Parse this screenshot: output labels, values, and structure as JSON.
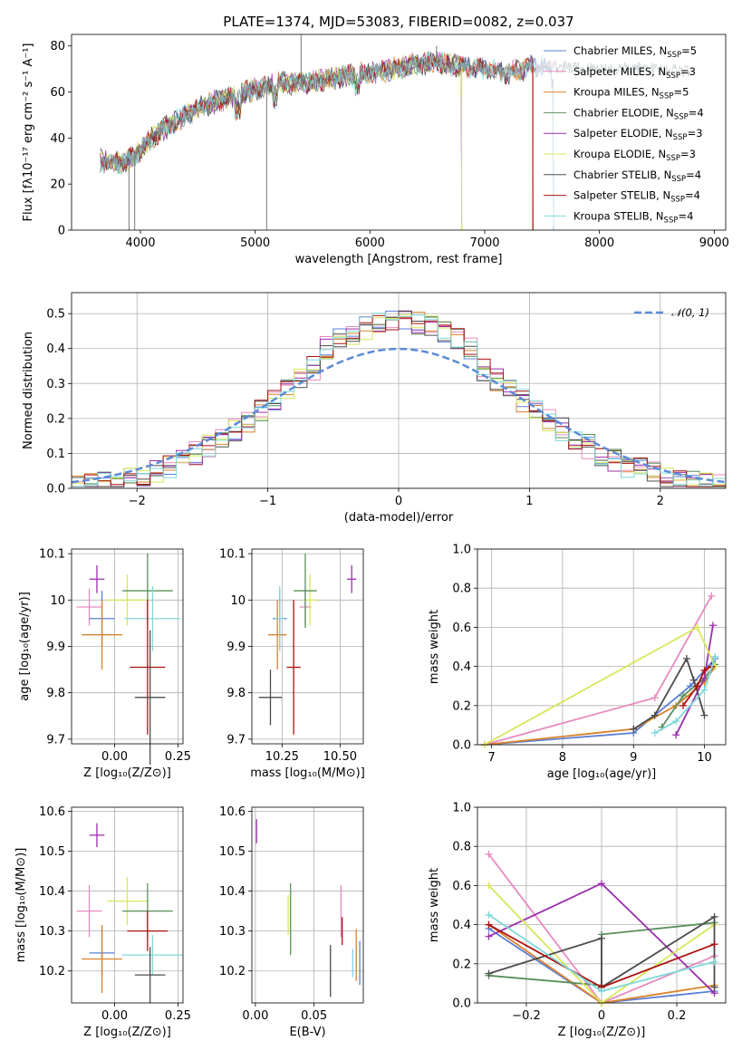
{
  "figure": {
    "title": "PLATE=1374, MJD=53083, FIBERID=0082, z=0.037"
  },
  "colors": {
    "Chabrier MILES": "#5b7fd6",
    "Salpeter MILES": "#e88ac0",
    "Kroupa MILES": "#d9822b",
    "Chabrier ELODIE": "#5a8f5a",
    "Salpeter ELODIE": "#9b2fae",
    "Kroupa ELODIE": "#d8e65a",
    "Chabrier STELIB": "#4d4d4d",
    "Salpeter STELIB": "#aa1111",
    "Kroupa STELIB": "#7fd8d8",
    "normal": "#5b8bd6"
  },
  "chart_data": [
    {
      "id": "spectrum",
      "type": "line",
      "xlabel": "wavelength [Angstrom, rest frame]",
      "ylabel": "Flux [fλ10⁻¹⁷ erg cm⁻² s⁻¹ A⁻¹]",
      "xlim": [
        3400,
        9100
      ],
      "ylim": [
        0,
        85
      ],
      "xticks": [
        4000,
        5000,
        6000,
        7000,
        8000,
        9000
      ],
      "yticks": [
        0,
        20,
        40,
        60,
        80
      ],
      "legend_position": "top-right",
      "legend": [
        {
          "name": "Chabrier MILES, N",
          "sub": "SSP",
          "eq": "=5",
          "key": "Chabrier MILES"
        },
        {
          "name": "Salpeter MILES, N",
          "sub": "SSP",
          "eq": "=3",
          "key": "Salpeter MILES"
        },
        {
          "name": "Kroupa MILES, N",
          "sub": "SSP",
          "eq": "=5",
          "key": "Kroupa MILES"
        },
        {
          "name": "Chabrier ELODIE, N",
          "sub": "SSP",
          "eq": "=4",
          "key": "Chabrier ELODIE"
        },
        {
          "name": "Salpeter ELODIE, N",
          "sub": "SSP",
          "eq": "=3",
          "key": "Salpeter ELODIE"
        },
        {
          "name": "Kroupa ELODIE, N",
          "sub": "SSP",
          "eq": "=3",
          "key": "Kroupa ELODIE"
        },
        {
          "name": "Chabrier STELIB, N",
          "sub": "SSP",
          "eq": "=4",
          "key": "Chabrier STELIB"
        },
        {
          "name": "Salpeter STELIB, N",
          "sub": "SSP",
          "eq": "=4",
          "key": "Salpeter STELIB"
        },
        {
          "name": "Kroupa STELIB, N",
          "sub": "SSP",
          "eq": "=4",
          "key": "Kroupa STELIB"
        }
      ],
      "continuum": [
        [
          3650,
          30
        ],
        [
          3800,
          29
        ],
        [
          3950,
          32
        ],
        [
          4050,
          38
        ],
        [
          4200,
          44
        ],
        [
          4400,
          50
        ],
        [
          4600,
          55
        ],
        [
          4800,
          58
        ],
        [
          5000,
          61
        ],
        [
          5200,
          64
        ],
        [
          5400,
          64
        ],
        [
          5600,
          65
        ],
        [
          5800,
          67
        ],
        [
          6000,
          68
        ],
        [
          6200,
          70
        ],
        [
          6400,
          72
        ],
        [
          6560,
          73
        ],
        [
          6800,
          71
        ],
        [
          7000,
          70
        ],
        [
          7200,
          68
        ],
        [
          7400,
          71
        ],
        [
          7600,
          71
        ],
        [
          8000,
          70
        ],
        [
          8500,
          70
        ],
        [
          8800,
          69
        ]
      ],
      "line_start": 3650,
      "line_end": 8800,
      "spikes": [
        [
          3900,
          0
        ],
        [
          3950,
          0
        ],
        [
          5100,
          0
        ],
        [
          5400,
          85
        ],
        [
          6580,
          80
        ],
        [
          6800,
          0
        ],
        [
          7420,
          0
        ]
      ],
      "series_ranges": {
        "Chabrier MILES": [
          3650,
          7600
        ],
        "Salpeter MILES": [
          3650,
          7600
        ],
        "Kroupa MILES": [
          3650,
          7420
        ],
        "Chabrier ELODIE": [
          3650,
          6800
        ],
        "Salpeter ELODIE": [
          3650,
          6800
        ],
        "Kroupa ELODIE": [
          3650,
          6800
        ],
        "Chabrier STELIB": [
          3650,
          7420
        ],
        "Salpeter STELIB": [
          3650,
          7420
        ],
        "Kroupa STELIB": [
          3650,
          7600
        ]
      }
    },
    {
      "id": "residual-hist",
      "type": "bar",
      "xlabel": "(data-model)/error",
      "ylabel": "Normed distribution",
      "xlim": [
        -2.5,
        2.5
      ],
      "ylim": [
        0,
        0.56
      ],
      "xticks": [
        -2,
        -1,
        0,
        1,
        2
      ],
      "yticks": [
        0.0,
        0.1,
        0.2,
        0.3,
        0.4,
        0.5
      ],
      "bin_width": 0.1,
      "grid": true,
      "legend": [
        {
          "name": "𝒩(0, 1)",
          "key": "normal"
        }
      ],
      "legend_position": "top-right"
    },
    {
      "id": "age-vs-Z",
      "type": "scatter",
      "xlabel": "Z [log₁₀(Z/Z⊙)]",
      "ylabel": "age  [log₁₀(age/yr)]",
      "xlim": [
        -0.17,
        0.27
      ],
      "ylim": [
        9.69,
        10.11
      ],
      "xticks": [
        0.0,
        0.25
      ],
      "yticks": [
        9.7,
        9.8,
        9.9,
        10.0,
        10.1
      ]
    },
    {
      "id": "age-vs-mass",
      "type": "scatter",
      "xlabel": "mass [log₁₀(M/M⊙)]",
      "ylabel": "",
      "xlim": [
        10.12,
        10.6
      ],
      "ylim": [
        9.69,
        10.11
      ],
      "xticks": [
        10.25,
        10.5
      ],
      "yticks": [
        9.7,
        9.8,
        9.9,
        10.0,
        10.1
      ]
    },
    {
      "id": "weight-vs-age",
      "type": "line",
      "xlabel": "age  [log₁₀(age/yr)]",
      "ylabel": "mass weight",
      "xlim": [
        6.8,
        10.3
      ],
      "ylim": [
        0,
        1.0
      ],
      "xticks": [
        7,
        8,
        9,
        10
      ],
      "yticks": [
        0.0,
        0.2,
        0.4,
        0.6,
        0.8,
        1.0
      ],
      "series": [
        {
          "key": "Chabrier MILES",
          "x": [
            6.9,
            9.0,
            9.8,
            10.15
          ],
          "y": [
            0.0,
            0.06,
            0.3,
            0.44
          ]
        },
        {
          "key": "Salpeter MILES",
          "x": [
            6.9,
            9.3,
            10.1
          ],
          "y": [
            0.0,
            0.24,
            0.76
          ]
        },
        {
          "key": "Kroupa MILES",
          "x": [
            6.9,
            9.0,
            9.6,
            10.0,
            10.15
          ],
          "y": [
            0.0,
            0.08,
            0.2,
            0.32,
            0.4
          ]
        },
        {
          "key": "Chabrier ELODIE",
          "x": [
            9.4,
            9.7,
            10.0,
            10.15
          ],
          "y": [
            0.09,
            0.25,
            0.34,
            0.41
          ]
        },
        {
          "key": "Salpeter ELODIE",
          "x": [
            9.6,
            10.0,
            10.12
          ],
          "y": [
            0.05,
            0.34,
            0.61
          ]
        },
        {
          "key": "Kroupa ELODIE",
          "x": [
            6.9,
            9.9,
            10.15
          ],
          "y": [
            0.0,
            0.6,
            0.4
          ]
        },
        {
          "key": "Chabrier STELIB",
          "x": [
            9.0,
            9.3,
            9.75,
            9.85,
            10.0
          ],
          "y": [
            0.08,
            0.15,
            0.44,
            0.33,
            0.15
          ]
        },
        {
          "key": "Salpeter STELIB",
          "x": [
            9.7,
            9.9,
            10.0,
            10.1
          ],
          "y": [
            0.2,
            0.3,
            0.38,
            0.4
          ]
        },
        {
          "key": "Kroupa STELIB",
          "x": [
            9.3,
            9.6,
            10.0,
            10.15
          ],
          "y": [
            0.06,
            0.12,
            0.28,
            0.45
          ]
        }
      ]
    },
    {
      "id": "mass-vs-Z",
      "type": "scatter",
      "xlabel": "Z [log₁₀(Z/Z⊙)]",
      "ylabel": "mass [log₁₀(M/M⊙)]",
      "xlim": [
        -0.17,
        0.27
      ],
      "ylim": [
        10.12,
        10.61
      ],
      "xticks": [
        0.0,
        0.25
      ],
      "yticks": [
        10.2,
        10.3,
        10.4,
        10.5,
        10.6
      ]
    },
    {
      "id": "mass-vs-EBV",
      "type": "scatter",
      "xlabel": "E(B-V)",
      "ylabel": "",
      "xlim": [
        -0.003,
        0.092
      ],
      "ylim": [
        10.12,
        10.61
      ],
      "xticks": [
        0.0,
        0.05
      ],
      "yticks": [
        10.2,
        10.3,
        10.4,
        10.5,
        10.6
      ],
      "points": [
        {
          "key": "Salpeter ELODIE",
          "x": 0.001,
          "y": 10.55,
          "ey": 0.03
        },
        {
          "key": "Kroupa ELODIE",
          "x": 0.028,
          "y": 10.34,
          "ey": 0.05
        },
        {
          "key": "Chabrier ELODIE",
          "x": 0.03,
          "y": 10.33,
          "ey": 0.09
        },
        {
          "key": "Chabrier STELIB",
          "x": 0.064,
          "y": 10.2,
          "ey": 0.065
        },
        {
          "key": "Salpeter MILES",
          "x": 0.073,
          "y": 10.35,
          "ey": 0.065
        },
        {
          "key": "Salpeter STELIB",
          "x": 0.074,
          "y": 10.3,
          "ey": 0.035
        },
        {
          "key": "Kroupa STELIB",
          "x": 0.083,
          "y": 10.22,
          "ey": 0.035
        },
        {
          "key": "Kroupa MILES",
          "x": 0.086,
          "y": 10.24,
          "ey": 0.065
        },
        {
          "key": "Chabrier MILES",
          "x": 0.089,
          "y": 10.22,
          "ey": 0.055
        }
      ]
    },
    {
      "id": "weight-vs-Z",
      "type": "line",
      "xlabel": "Z [log₁₀(Z/Z⊙)]",
      "ylabel": "mass weight",
      "xlim": [
        -0.33,
        0.33
      ],
      "ylim": [
        0,
        1.0
      ],
      "xticks": [
        -0.2,
        0.0,
        0.2
      ],
      "yticks": [
        0.0,
        0.2,
        0.4,
        0.6,
        0.8,
        1.0
      ],
      "series": [
        {
          "key": "Chabrier MILES",
          "x": [
            -0.3,
            0.0,
            0.3
          ],
          "y": [
            0.38,
            0.0,
            0.06
          ]
        },
        {
          "key": "Salpeter MILES",
          "x": [
            -0.3,
            0.0,
            0.3
          ],
          "y": [
            0.76,
            0.0,
            0.24
          ]
        },
        {
          "key": "Kroupa MILES",
          "x": [
            -0.3,
            0.0,
            0.3
          ],
          "y": [
            0.4,
            0.0,
            0.09
          ]
        },
        {
          "key": "Chabrier ELODIE",
          "x": [
            -0.3,
            0.0,
            0.0,
            0.3
          ],
          "y": [
            0.14,
            0.09,
            0.35,
            0.41
          ]
        },
        {
          "key": "Salpeter ELODIE",
          "x": [
            -0.3,
            0.0,
            0.3
          ],
          "y": [
            0.34,
            0.61,
            0.05
          ]
        },
        {
          "key": "Kroupa ELODIE",
          "x": [
            -0.3,
            0.0,
            0.3
          ],
          "y": [
            0.6,
            0.0,
            0.4
          ]
        },
        {
          "key": "Chabrier STELIB",
          "x": [
            -0.3,
            0.0,
            0.0,
            0.3,
            0.3
          ],
          "y": [
            0.15,
            0.33,
            0.08,
            0.44,
            0.08
          ]
        },
        {
          "key": "Salpeter STELIB",
          "x": [
            -0.3,
            0.0,
            0.3
          ],
          "y": [
            0.4,
            0.08,
            0.3
          ]
        },
        {
          "key": "Kroupa STELIB",
          "x": [
            -0.3,
            0.0,
            0.3
          ],
          "y": [
            0.45,
            0.06,
            0.21
          ]
        }
      ]
    }
  ],
  "points_ageZ": [
    {
      "key": "Salpeter ELODIE",
      "x": -0.07,
      "y": 10.045,
      "ex": 0.03,
      "ey": 0.03
    },
    {
      "key": "Salpeter MILES",
      "x": -0.1,
      "y": 9.985,
      "ex": 0.05,
      "ey": 0.04
    },
    {
      "key": "Chabrier MILES",
      "x": -0.05,
      "y": 9.96,
      "ex": 0.05,
      "ey": 0.06
    },
    {
      "key": "Kroupa MILES",
      "x": -0.05,
      "y": 9.925,
      "ex": 0.08,
      "ey": 0.075
    },
    {
      "key": "Kroupa ELODIE",
      "x": 0.05,
      "y": 10.0,
      "ex": 0.08,
      "ey": 0.055
    },
    {
      "key": "Chabrier ELODIE",
      "x": 0.13,
      "y": 10.02,
      "ex": 0.1,
      "ey": 0.08
    },
    {
      "key": "Kroupa STELIB",
      "x": 0.15,
      "y": 9.96,
      "ex": 0.11,
      "ey": 0.07
    },
    {
      "key": "Salpeter STELIB",
      "x": 0.13,
      "y": 9.855,
      "ex": 0.07,
      "ey": 0.145
    },
    {
      "key": "Chabrier STELIB",
      "x": 0.14,
      "y": 9.79,
      "ex": 0.06,
      "ey": 0.145
    }
  ],
  "points_ageMass": [
    {
      "key": "Salpeter ELODIE",
      "x": 10.55,
      "y": 10.045,
      "ex": 0.02,
      "ey": 0.03
    },
    {
      "key": "Salpeter MILES",
      "x": 10.35,
      "y": 9.985,
      "ex": 0.025,
      "ey": 0.04
    },
    {
      "key": "Chabrier MILES",
      "x": 10.24,
      "y": 9.96,
      "ex": 0.03,
      "ey": 0.06
    },
    {
      "key": "Kroupa MILES",
      "x": 10.23,
      "y": 9.925,
      "ex": 0.04,
      "ey": 0.075
    },
    {
      "key": "Kroupa ELODIE",
      "x": 10.37,
      "y": 10.0,
      "ex": 0.03,
      "ey": 0.055
    },
    {
      "key": "Chabrier ELODIE",
      "x": 10.35,
      "y": 10.02,
      "ex": 0.05,
      "ey": 0.08
    },
    {
      "key": "Kroupa STELIB",
      "x": 10.24,
      "y": 9.96,
      "ex": 0.02,
      "ey": 0.07
    },
    {
      "key": "Salpeter STELIB",
      "x": 10.3,
      "y": 9.855,
      "ex": 0.03,
      "ey": 0.145
    },
    {
      "key": "Chabrier STELIB",
      "x": 10.2,
      "y": 9.79,
      "ex": 0.05,
      "ey": 0.06
    }
  ],
  "points_massZ": [
    {
      "key": "Salpeter ELODIE",
      "x": -0.07,
      "y": 10.54,
      "ex": 0.03,
      "ey": 0.03
    },
    {
      "key": "Salpeter MILES",
      "x": -0.1,
      "y": 10.35,
      "ex": 0.05,
      "ey": 0.065
    },
    {
      "key": "Kroupa ELODIE",
      "x": 0.05,
      "y": 10.375,
      "ex": 0.08,
      "ey": 0.06
    },
    {
      "key": "Chabrier ELODIE",
      "x": 0.13,
      "y": 10.35,
      "ex": 0.1,
      "ey": 0.07
    },
    {
      "key": "Salpeter STELIB",
      "x": 0.13,
      "y": 10.3,
      "ex": 0.08,
      "ey": 0.05
    },
    {
      "key": "Chabrier MILES",
      "x": -0.05,
      "y": 10.245,
      "ex": 0.05,
      "ey": 0.06
    },
    {
      "key": "Kroupa MILES",
      "x": -0.05,
      "y": 10.23,
      "ex": 0.08,
      "ey": 0.085
    },
    {
      "key": "Kroupa STELIB",
      "x": 0.15,
      "y": 10.24,
      "ex": 0.12,
      "ey": 0.05
    },
    {
      "key": "Chabrier STELIB",
      "x": 0.14,
      "y": 10.19,
      "ex": 0.06,
      "ey": 0.07
    }
  ]
}
